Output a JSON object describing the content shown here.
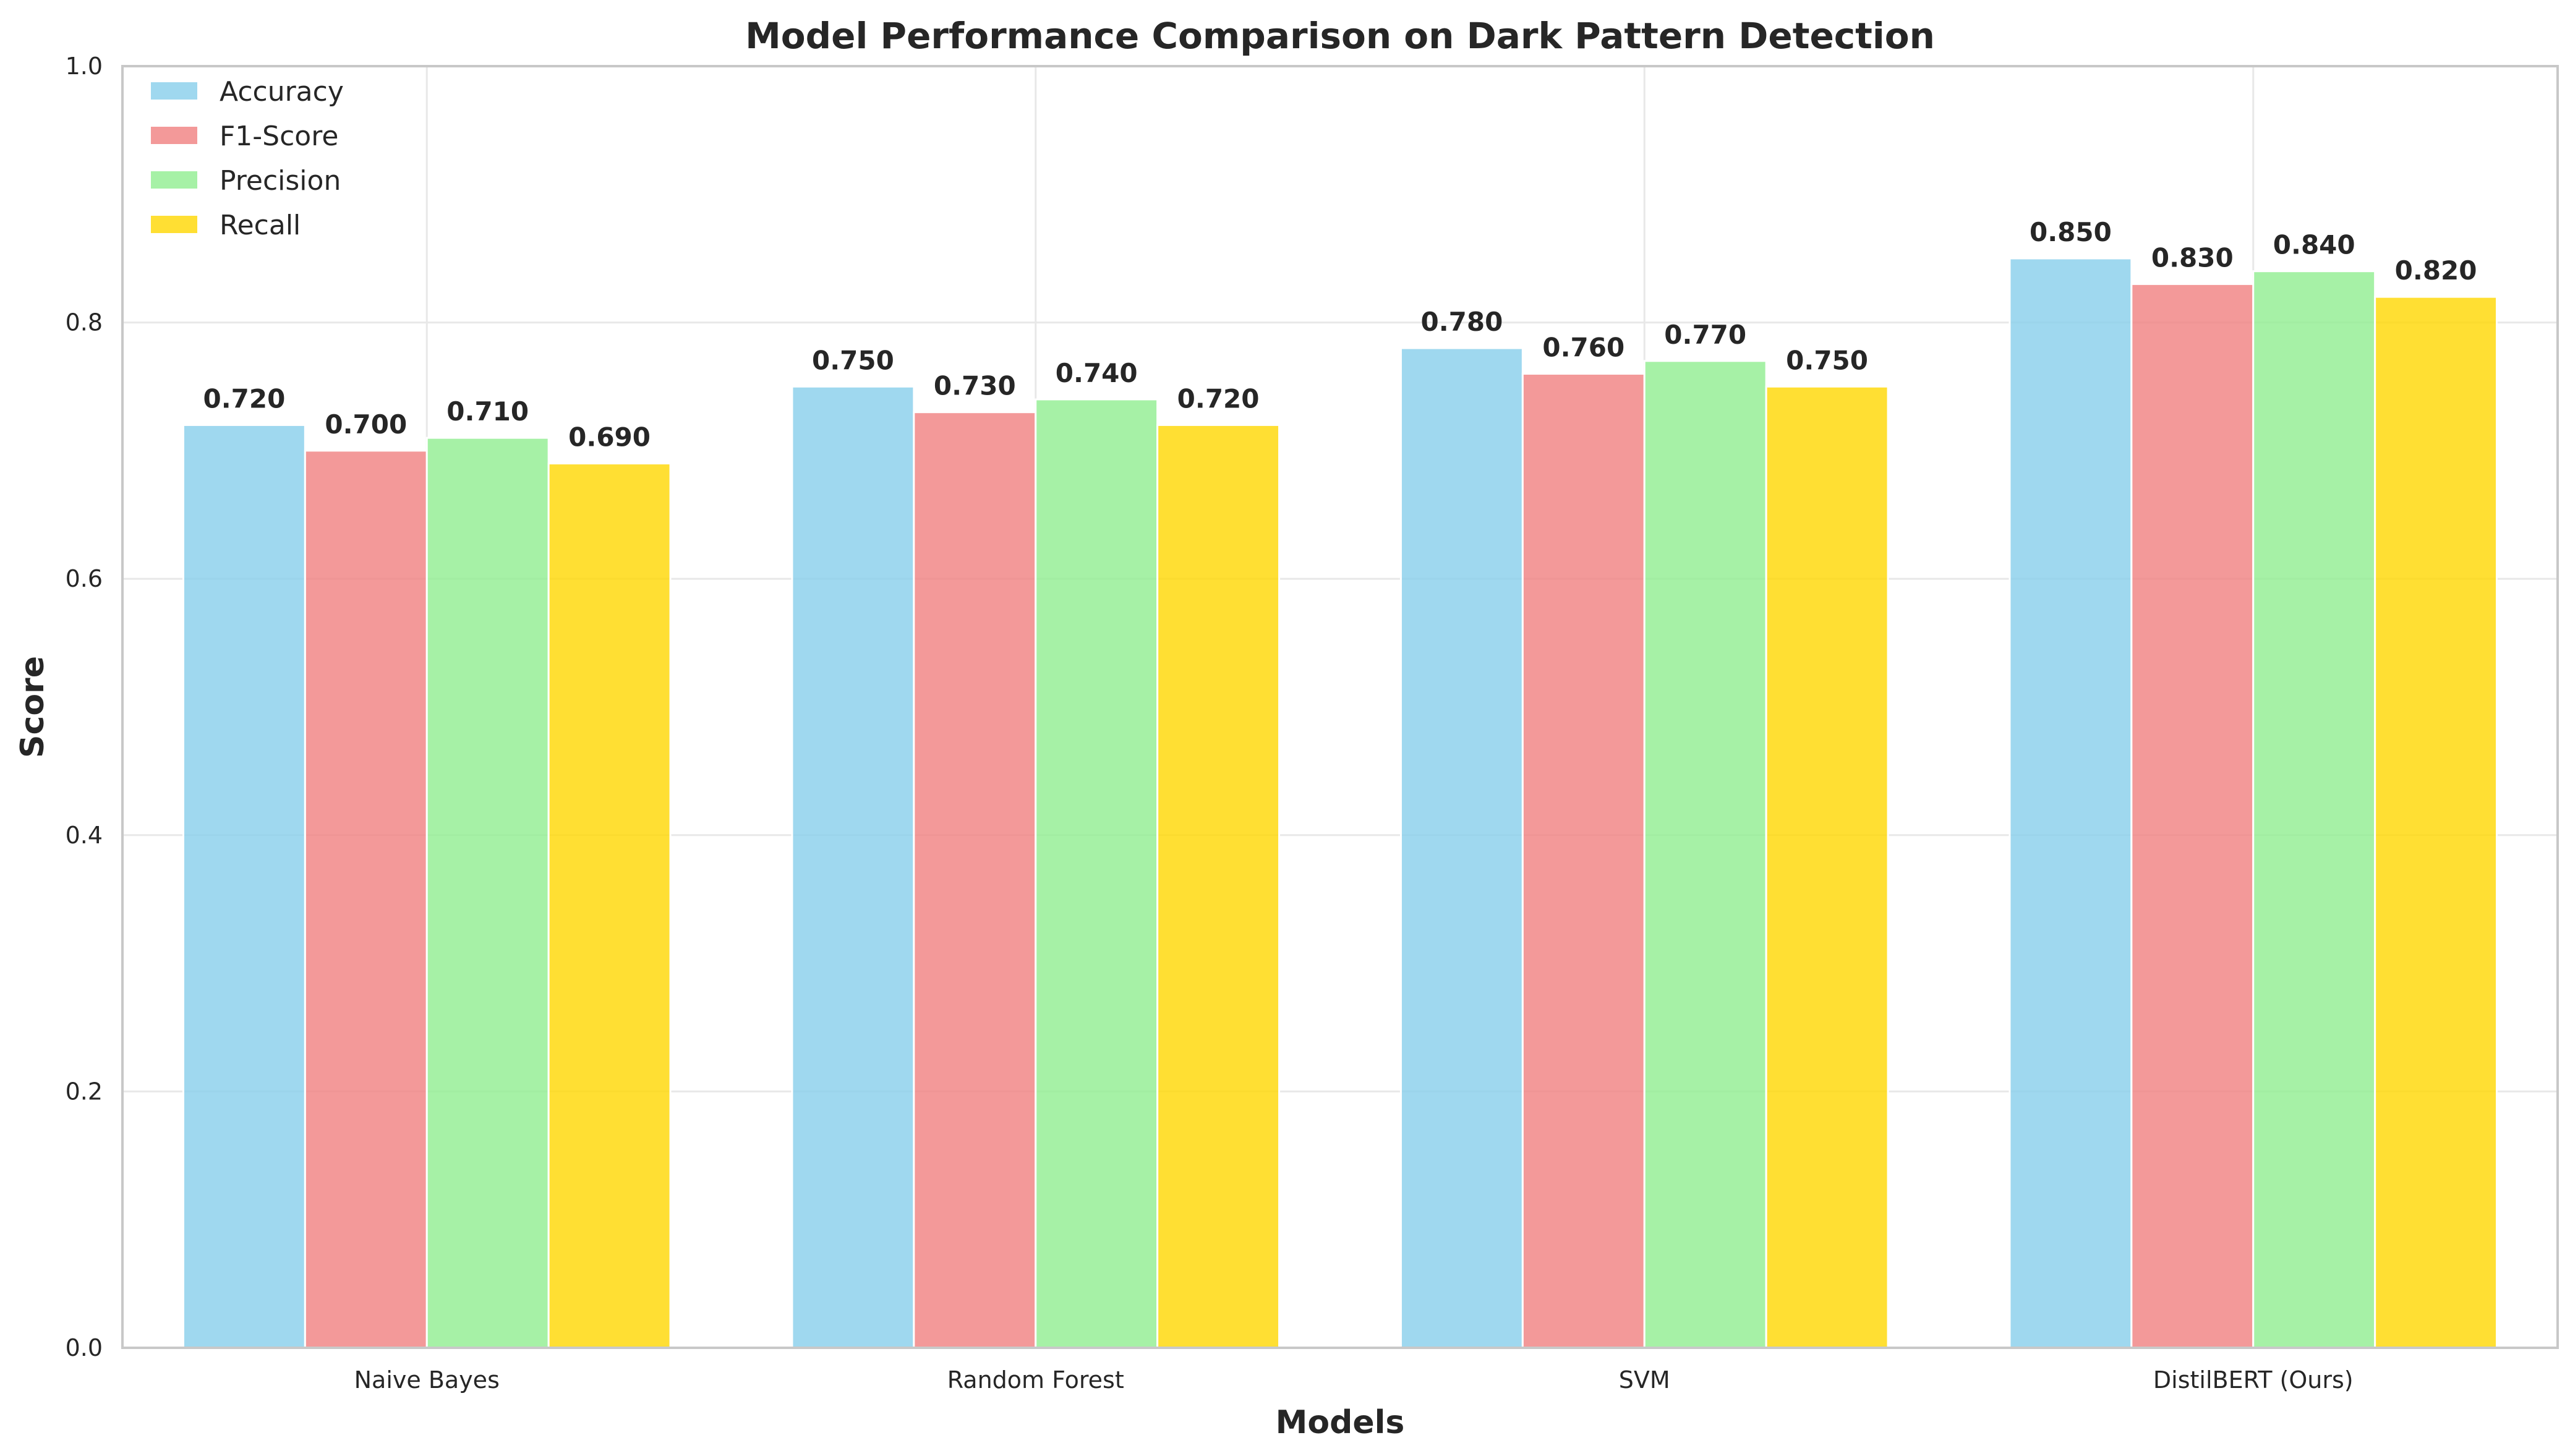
{
  "chart_data": {
    "type": "bar",
    "title": "Model Performance Comparison on Dark Pattern Detection",
    "xlabel": "Models",
    "ylabel": "Score",
    "categories": [
      "Naive Bayes",
      "Random Forest",
      "SVM",
      "DistilBERT (Ours)"
    ],
    "series": [
      {
        "name": "Accuracy",
        "color": "#87ceeb",
        "values": [
          0.72,
          0.75,
          0.78,
          0.85
        ],
        "labels": [
          "0.720",
          "0.750",
          "0.780",
          "0.850"
        ]
      },
      {
        "name": "F1-Score",
        "color": "#f08080",
        "values": [
          0.7,
          0.73,
          0.76,
          0.83
        ],
        "labels": [
          "0.700",
          "0.730",
          "0.760",
          "0.830"
        ]
      },
      {
        "name": "Precision",
        "color": "#90ee90",
        "values": [
          0.71,
          0.74,
          0.77,
          0.84
        ],
        "labels": [
          "0.710",
          "0.740",
          "0.770",
          "0.840"
        ]
      },
      {
        "name": "Recall",
        "color": "#ffd700",
        "values": [
          0.69,
          0.72,
          0.75,
          0.82
        ],
        "labels": [
          "0.690",
          "0.720",
          "0.750",
          "0.820"
        ]
      }
    ],
    "ylim": [
      0,
      1.0
    ],
    "yticks": [
      "0.0",
      "0.2",
      "0.4",
      "0.6",
      "0.8",
      "1.0"
    ],
    "grid": true,
    "legend_position": "top-left"
  }
}
